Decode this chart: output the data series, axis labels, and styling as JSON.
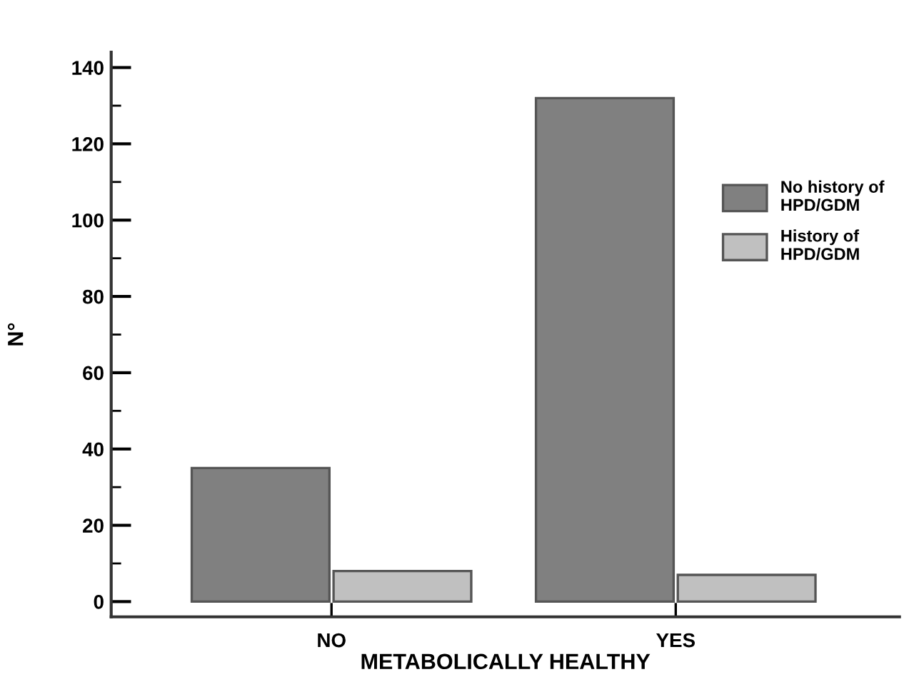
{
  "chart_data": {
    "type": "bar",
    "xlabel": "METABOLICALLY HEALTHY",
    "ylabel": "N°",
    "categories": [
      "NO",
      "YES"
    ],
    "series": [
      {
        "name": "No history of\nHPD/GDM",
        "color": "#808080",
        "values": [
          35,
          132
        ]
      },
      {
        "name": "History of\nHPD/GDM",
        "color": "#c0c0c0",
        "values": [
          8,
          7
        ]
      }
    ],
    "ylim": [
      -4,
      144
    ],
    "yticks": [
      0,
      20,
      40,
      60,
      80,
      100,
      120,
      140
    ],
    "grid": false,
    "legend": "top right"
  }
}
